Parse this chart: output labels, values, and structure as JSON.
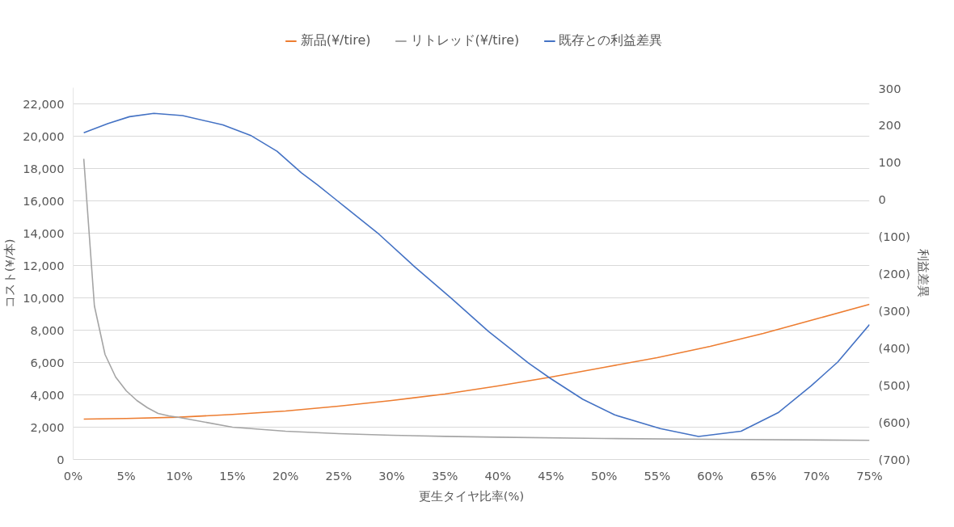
{
  "chart_data": {
    "type": "line",
    "xlabel": "更生タイヤ比率(%)",
    "ylabel": "コスト(¥/本)",
    "y2label": "利益差異",
    "series": [
      {
        "name": "新品(¥/tire)",
        "color": "#ed7d31",
        "x": [
          0.01,
          0.05,
          0.1,
          0.15,
          0.2,
          0.25,
          0.3,
          0.35,
          0.4,
          0.45,
          0.5,
          0.55,
          0.6,
          0.65,
          0.7,
          0.75
        ],
        "values": [
          2500,
          2540,
          2620,
          2790,
          3000,
          3300,
          3650,
          4050,
          4550,
          5100,
          5700,
          6300,
          7000,
          7800,
          8700,
          9600
        ]
      },
      {
        "name": "リトレッド(¥/tire)",
        "color": "#a5a5a5",
        "x": [
          0.01,
          0.02,
          0.03,
          0.04,
          0.05,
          0.06,
          0.07,
          0.08,
          0.09,
          0.1,
          0.15,
          0.2,
          0.25,
          0.3,
          0.35,
          0.4,
          0.5,
          0.6,
          0.75
        ],
        "values": [
          18600,
          9500,
          6500,
          5100,
          4250,
          3650,
          3200,
          2850,
          2700,
          2600,
          2000,
          1750,
          1600,
          1500,
          1430,
          1380,
          1300,
          1250,
          1190
        ]
      },
      {
        "name": "既存との利益差異",
        "color": "#4472c4",
        "axis": "y2",
        "x": [
          0.01,
          0.033,
          0.053,
          0.076,
          0.103,
          0.141,
          0.167,
          0.192,
          0.215,
          0.23,
          0.247,
          0.288,
          0.321,
          0.356,
          0.391,
          0.429,
          0.449,
          0.48,
          0.51,
          0.553,
          0.589,
          0.629,
          0.664,
          0.695,
          0.72,
          0.75
        ],
        "values": [
          179,
          204,
          222,
          231,
          225,
          200,
          172,
          129,
          71,
          39,
          0,
          -94,
          -180,
          -266,
          -355,
          -441,
          -481,
          -538,
          -580,
          -617,
          -638,
          -624,
          -574,
          -502,
          -438,
          -337
        ]
      }
    ],
    "xlim": [
      0,
      0.75
    ],
    "xticks": [
      {
        "value": 0,
        "label": "0%"
      },
      {
        "value": 0.05,
        "label": "5%"
      },
      {
        "value": 0.1,
        "label": "10%"
      },
      {
        "value": 0.15,
        "label": "15%"
      },
      {
        "value": 0.2,
        "label": "20%"
      },
      {
        "value": 0.25,
        "label": "25%"
      },
      {
        "value": 0.3,
        "label": "30%"
      },
      {
        "value": 0.35,
        "label": "35%"
      },
      {
        "value": 0.4,
        "label": "40%"
      },
      {
        "value": 0.45,
        "label": "45%"
      },
      {
        "value": 0.5,
        "label": "50%"
      },
      {
        "value": 0.55,
        "label": "55%"
      },
      {
        "value": 0.6,
        "label": "60%"
      },
      {
        "value": 0.65,
        "label": "65%"
      },
      {
        "value": 0.7,
        "label": "70%"
      },
      {
        "value": 0.75,
        "label": "75%"
      }
    ],
    "ylim": [
      0,
      23000
    ],
    "yticks": [
      {
        "value": 0,
        "label": "0"
      },
      {
        "value": 2000,
        "label": "2,000"
      },
      {
        "value": 4000,
        "label": "4,000"
      },
      {
        "value": 6000,
        "label": "6,000"
      },
      {
        "value": 8000,
        "label": "8,000"
      },
      {
        "value": 10000,
        "label": "10,000"
      },
      {
        "value": 12000,
        "label": "12,000"
      },
      {
        "value": 14000,
        "label": "14,000"
      },
      {
        "value": 16000,
        "label": "16,000"
      },
      {
        "value": 18000,
        "label": "18,000"
      },
      {
        "value": 20000,
        "label": "20,000"
      },
      {
        "value": 22000,
        "label": "22,000"
      }
    ],
    "y2lim": [
      -700,
      300
    ],
    "y2ticks": [
      300,
      200,
      100,
      0,
      {
        "value": -100,
        "label": "(100)"
      },
      {
        "value": -200,
        "label": "(200)"
      },
      {
        "value": -300,
        "label": "(300)"
      },
      {
        "value": -400,
        "label": "(400)"
      },
      {
        "value": -500,
        "label": "(500)"
      },
      {
        "value": -600,
        "label": "(600)"
      },
      {
        "value": -700,
        "label": "(700)"
      }
    ],
    "grid": "y",
    "legend": "top",
    "marker": "none",
    "line_style": "solid"
  }
}
